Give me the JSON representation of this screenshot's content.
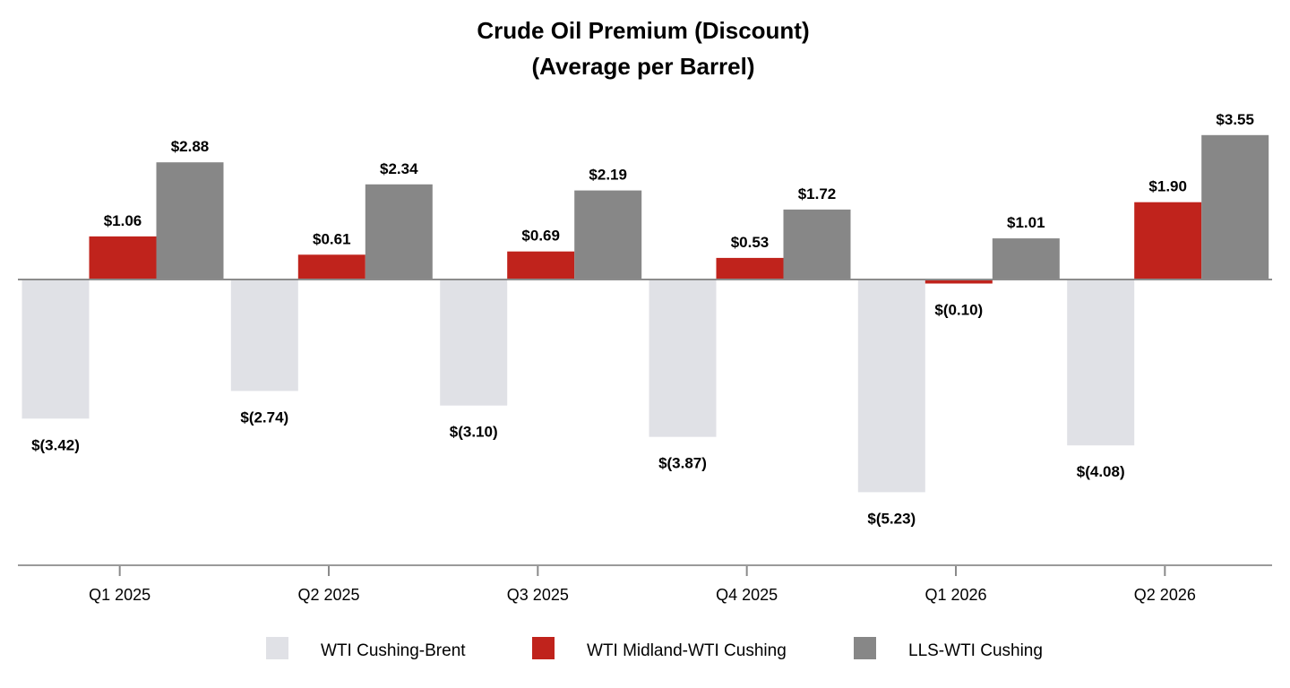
{
  "chart_data": {
    "type": "bar",
    "title": [
      "Crude Oil Premium (Discount)",
      "(Average per Barrel)"
    ],
    "categories": [
      "Q1 2025",
      "Q2 2025",
      "Q3 2025",
      "Q4 2025",
      "Q1 2026",
      "Q2 2026"
    ],
    "series": [
      {
        "name": "WTI Cushing-Brent",
        "color": "#e0e1e6",
        "values": [
          -3.42,
          -2.74,
          -3.1,
          -3.87,
          -5.23,
          -4.08
        ],
        "labels": [
          "$(3.42)",
          "$(2.74)",
          "$(3.10)",
          "$(3.87)",
          "$(5.23)",
          "$(4.08)"
        ]
      },
      {
        "name": "WTI Midland-WTI Cushing",
        "color": "#c0231c",
        "values": [
          1.06,
          0.61,
          0.69,
          0.53,
          -0.1,
          1.9
        ],
        "labels": [
          "$1.06",
          "$0.61",
          "$0.69",
          "$0.53",
          "$(0.10)",
          "$1.90"
        ]
      },
      {
        "name": "LLS-WTI Cushing",
        "color": "#878787",
        "values": [
          2.88,
          2.34,
          2.19,
          1.72,
          1.01,
          3.55
        ],
        "labels": [
          "$2.88",
          "$2.34",
          "$2.19",
          "$1.72",
          "$1.01",
          "$3.55"
        ]
      }
    ],
    "ylim": [
      -7.0,
      4.0
    ],
    "grid": false,
    "legend_position": "bottom"
  }
}
